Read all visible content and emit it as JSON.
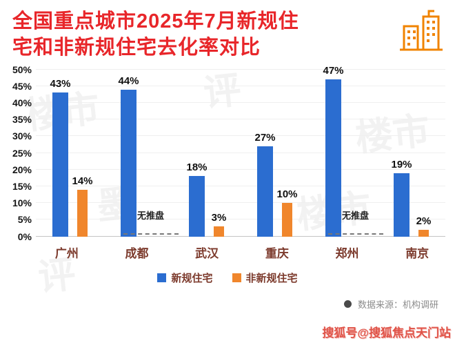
{
  "title": {
    "line1": "全国重点城市2025年7月新规住",
    "line2": "宅和非新规住宅去化率对比"
  },
  "chart_data": {
    "type": "bar",
    "categories": [
      "广州",
      "成都",
      "武汉",
      "重庆",
      "郑州",
      "南京"
    ],
    "series": [
      {
        "name": "新规住宅",
        "color": "#2b6dd0",
        "values": [
          43,
          44,
          18,
          27,
          47,
          19
        ]
      },
      {
        "name": "非新规住宅",
        "color": "#f0862c",
        "values": [
          14,
          null,
          3,
          10,
          null,
          2
        ]
      }
    ],
    "no_data_label": "无推盘",
    "title": "全国重点城市2025年7月新规住宅和非新规住宅去化率对比",
    "xlabel": "",
    "ylabel": "",
    "ylim": [
      0,
      50
    ],
    "ytick_step": 5,
    "yticks": [
      "0%",
      "5%",
      "10%",
      "15%",
      "20%",
      "25%",
      "30%",
      "35%",
      "40%",
      "45%",
      "50%"
    ],
    "grid": true,
    "legend_position": "bottom"
  },
  "legend": [
    {
      "label": "新规住宅",
      "color": "#2b6dd0"
    },
    {
      "label": "非新规住宅",
      "color": "#f0862c"
    }
  ],
  "source": {
    "text": "数据来源：机构调研"
  },
  "footer_watermark": "搜狐号@搜狐焦点天门站",
  "background_watermarks": [
    "楼市",
    "评",
    "楼市",
    "墨",
    "楼市",
    "评"
  ],
  "colors": {
    "title_red": "#e8262a",
    "bar_blue": "#2b6dd0",
    "bar_orange": "#f0862c",
    "city_label": "#7c3a2c",
    "building_icon_orange": "#f08300"
  }
}
